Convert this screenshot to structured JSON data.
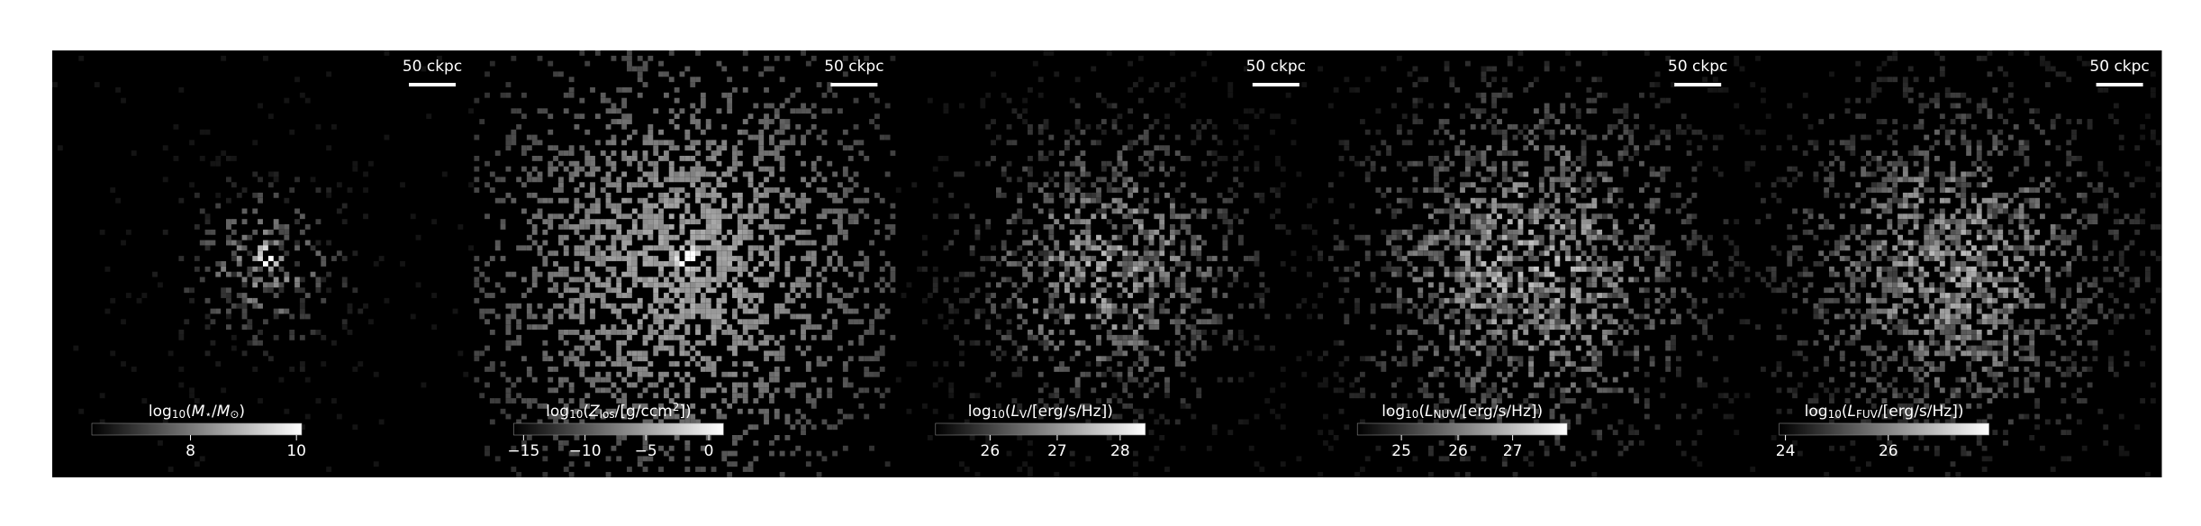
{
  "panels": [
    {
      "scale_bar": "50 ckpc",
      "colorbar_label": [
        {
          "text": "log"
        },
        {
          "text": "10",
          "sub": true
        },
        {
          "text": "("
        },
        {
          "text": "M",
          "italic": true
        },
        {
          "text": "⋆",
          "sub": true
        },
        {
          "text": "/"
        },
        {
          "text": "M",
          "italic": true
        },
        {
          "text": "⊙",
          "sub": true
        },
        {
          "text": ")"
        }
      ],
      "colorbar_ticks": [
        "8",
        "10"
      ]
    },
    {
      "scale_bar": "50 ckpc",
      "colorbar_label": [
        {
          "text": "log"
        },
        {
          "text": "10",
          "sub": true
        },
        {
          "text": "("
        },
        {
          "text": "Z",
          "italic": true
        },
        {
          "text": "los",
          "sub": true
        },
        {
          "text": "/[g/ccm"
        },
        {
          "text": "2",
          "sup": true
        },
        {
          "text": "])"
        }
      ],
      "colorbar_ticks": [
        "−15",
        "−10",
        "−5",
        "0"
      ]
    },
    {
      "scale_bar": "50 ckpc",
      "colorbar_label": [
        {
          "text": "log"
        },
        {
          "text": "10",
          "sub": true
        },
        {
          "text": "("
        },
        {
          "text": "L",
          "italic": true
        },
        {
          "text": "V",
          "sub": true
        },
        {
          "text": "/[erg/s/Hz])"
        }
      ],
      "colorbar_ticks": [
        "26",
        "27",
        "28"
      ]
    },
    {
      "scale_bar": "50 ckpc",
      "colorbar_label": [
        {
          "text": "log"
        },
        {
          "text": "10",
          "sub": true
        },
        {
          "text": "("
        },
        {
          "text": "L",
          "italic": true
        },
        {
          "text": "NUV",
          "sub": true
        },
        {
          "text": "/[erg/s/Hz])"
        }
      ],
      "colorbar_ticks": [
        "25",
        "26",
        "27"
      ]
    },
    {
      "scale_bar": "50 ckpc",
      "colorbar_label": [
        {
          "text": "log"
        },
        {
          "text": "10",
          "sub": true
        },
        {
          "text": "("
        },
        {
          "text": "L",
          "italic": true
        },
        {
          "text": "FUV",
          "sub": true
        },
        {
          "text": "/[erg/s/Hz])"
        }
      ],
      "colorbar_ticks": [
        "24",
        "26"
      ]
    }
  ]
}
